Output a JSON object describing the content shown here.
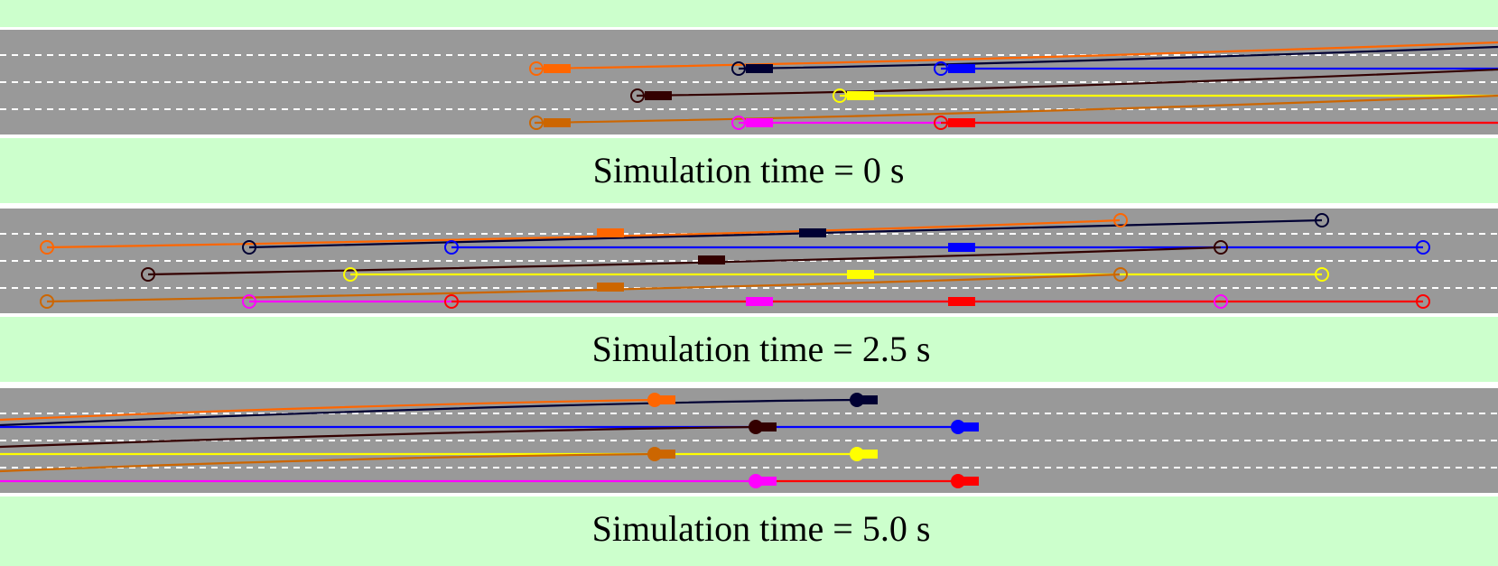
{
  "colors": {
    "background": "#ffffff",
    "green_band": "#ccffcc",
    "road": "#999999",
    "lane_marking": "#ffffff"
  },
  "vehicles": [
    {
      "id": "orange",
      "color": "#ff6600"
    },
    {
      "id": "navy",
      "color": "#000033"
    },
    {
      "id": "blue",
      "color": "#0000ff"
    },
    {
      "id": "maroon",
      "color": "#330000"
    },
    {
      "id": "yellow",
      "color": "#ffff00"
    },
    {
      "id": "rust",
      "color": "#cc6600"
    },
    {
      "id": "magenta",
      "color": "#ff00ff"
    },
    {
      "id": "red",
      "color": "#ff0000"
    }
  ],
  "panels": [
    {
      "id": "t0",
      "caption": "Simulation time = 0 s"
    },
    {
      "id": "t25",
      "caption": "Simulation time = 2.5 s"
    },
    {
      "id": "t50",
      "caption": "Simulation time = 5.0 s"
    }
  ]
}
